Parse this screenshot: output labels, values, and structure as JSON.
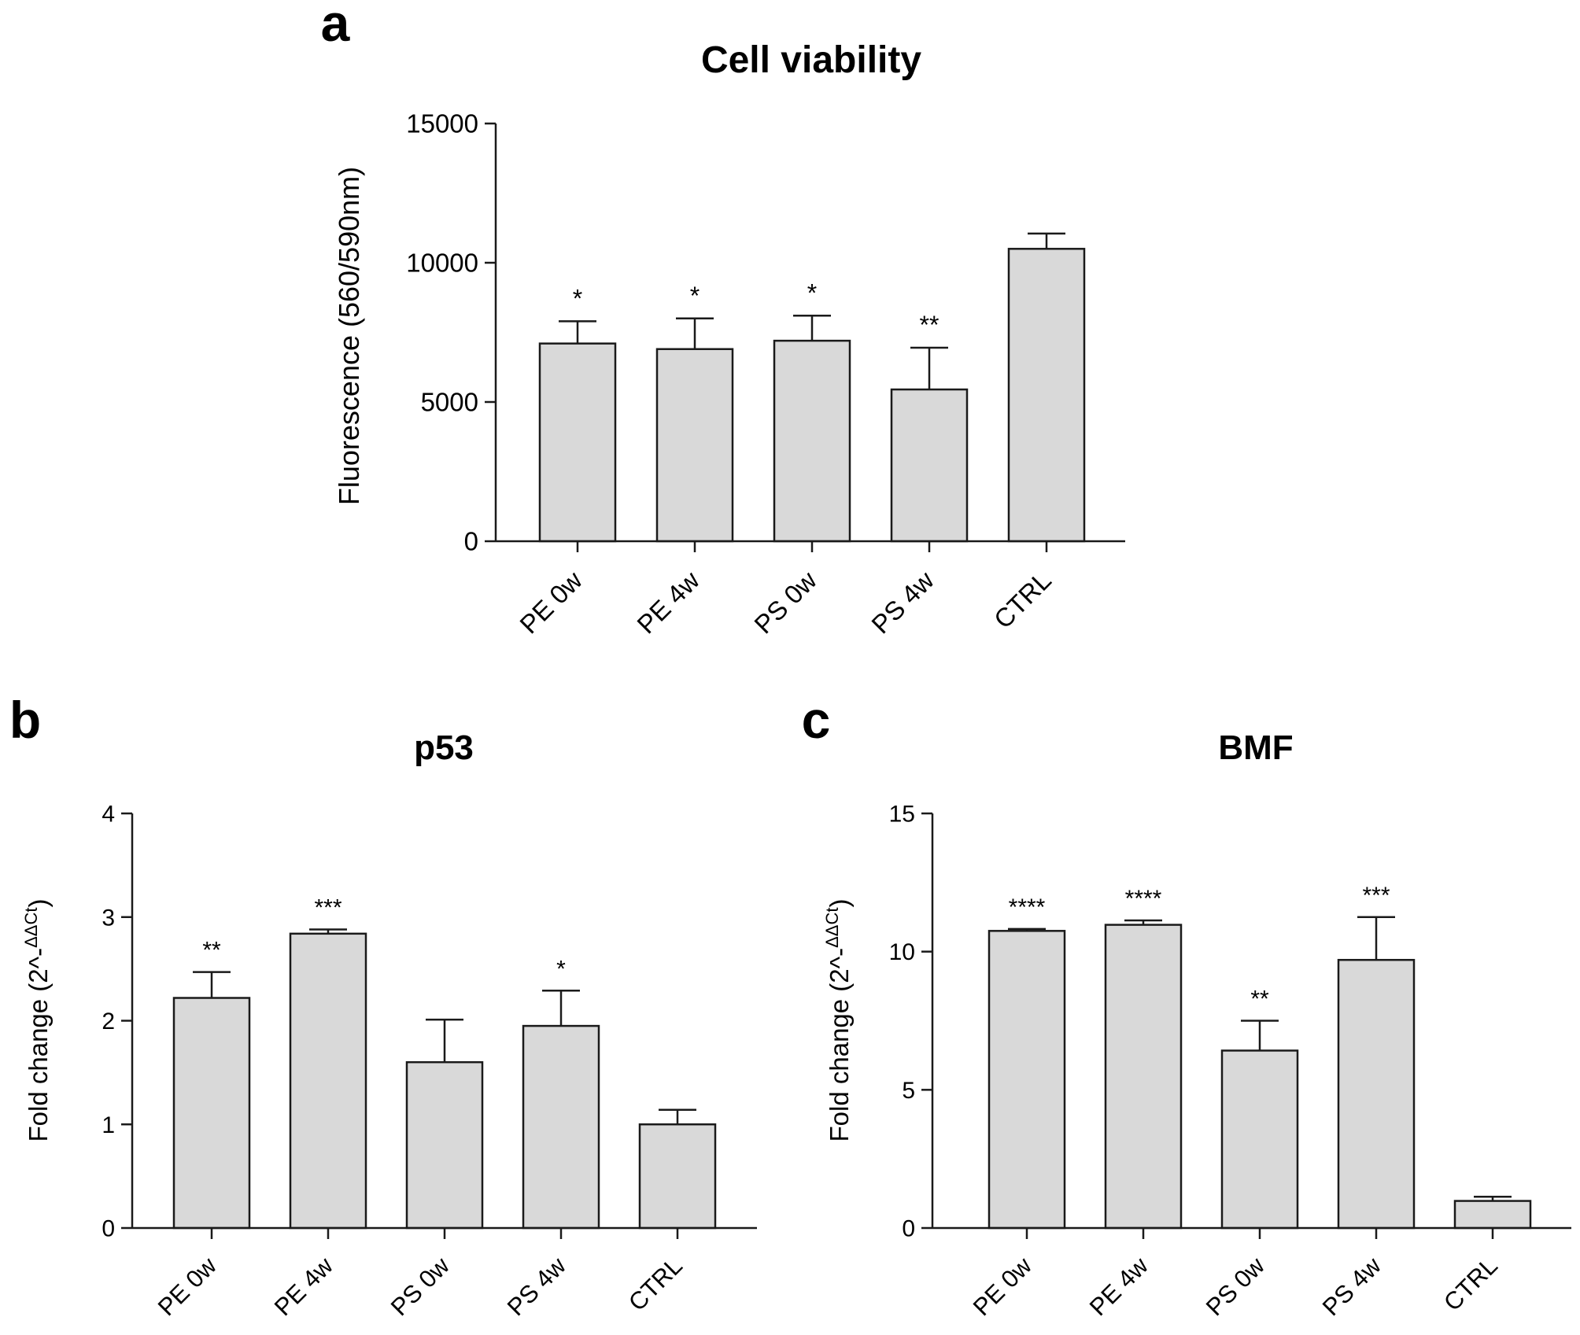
{
  "chart_data": [
    {
      "panel_label": "a",
      "type": "bar",
      "title": "Cell viability",
      "xlabel": "",
      "ylabel": "Fluorescence (560/590nm)",
      "ylim": [
        0,
        15000
      ],
      "yticks": [
        0,
        5000,
        10000,
        15000
      ],
      "categories": [
        "PE 0w",
        "PE 4w",
        "PS 0w",
        "PS 4w",
        "CTRL"
      ],
      "values": [
        7100,
        6900,
        7200,
        5450,
        10500
      ],
      "errors": [
        800,
        1100,
        900,
        1500,
        550
      ],
      "significance": [
        "*",
        "*",
        "*",
        "**",
        ""
      ],
      "bar_color": "#d9d9d9",
      "edge_color": "#1a1a1a"
    },
    {
      "panel_label": "b",
      "type": "bar",
      "title": "p53",
      "xlabel": "",
      "ylabel": "Fold change (2^-ΔΔCt)",
      "ylabel_main": "Fold change (2^-",
      "ylabel_sup": "ΔΔCt",
      "ylabel_end": ")",
      "ylim": [
        0,
        4
      ],
      "yticks": [
        0,
        1,
        2,
        3,
        4
      ],
      "categories": [
        "PE 0w",
        "PE 4w",
        "PS 0w",
        "PS 4w",
        "CTRL"
      ],
      "values": [
        2.22,
        2.84,
        1.6,
        1.95,
        1.0
      ],
      "errors": [
        0.25,
        0.04,
        0.41,
        0.34,
        0.14
      ],
      "significance": [
        "**",
        "***",
        "",
        "*",
        ""
      ],
      "bar_color": "#d9d9d9",
      "edge_color": "#1a1a1a"
    },
    {
      "panel_label": "c",
      "type": "bar",
      "title": "BMF",
      "xlabel": "",
      "ylabel": "Fold change (2^-ΔΔCt)",
      "ylabel_main": "Fold change (2^-",
      "ylabel_sup": "ΔΔCt",
      "ylabel_end": ")",
      "ylim": [
        0,
        15
      ],
      "yticks": [
        0,
        5,
        10,
        15
      ],
      "categories": [
        "PE 0w",
        "PE 4w",
        "PS 0w",
        "PS 4w",
        "CTRL"
      ],
      "values": [
        10.75,
        10.97,
        6.42,
        9.7,
        0.98
      ],
      "errors": [
        0.07,
        0.16,
        1.08,
        1.55,
        0.15
      ],
      "significance": [
        "****",
        "****",
        "**",
        "***",
        ""
      ],
      "bar_color": "#d9d9d9",
      "edge_color": "#1a1a1a"
    }
  ]
}
